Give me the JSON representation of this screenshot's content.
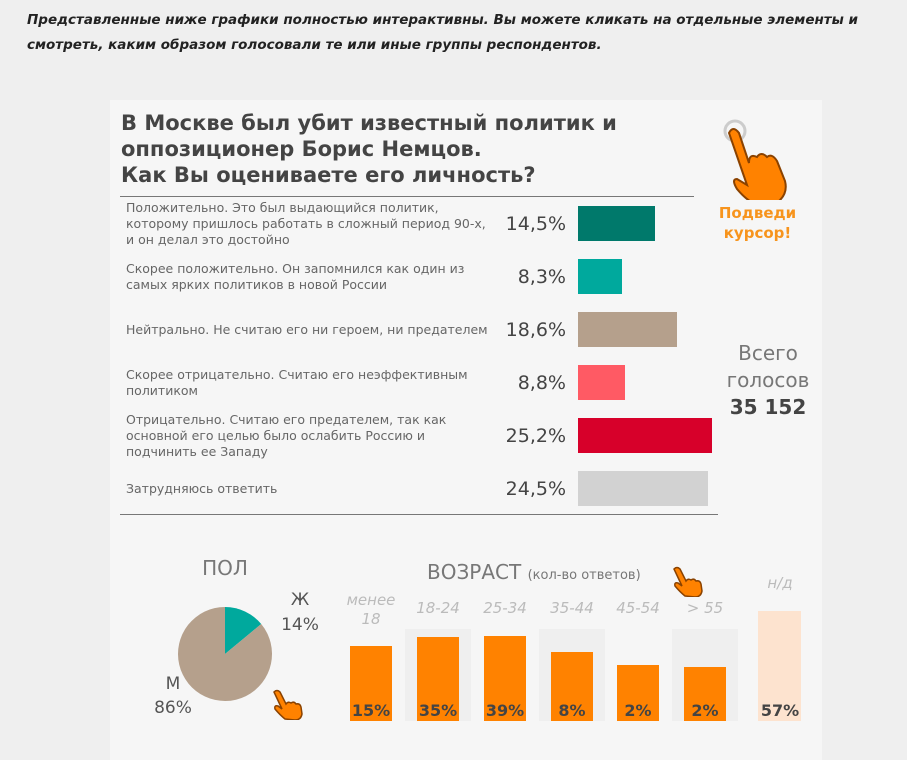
{
  "intro": "Представленные ниже графики полностью интерактивны. Вы можете кликать на отдельные элементы и смотреть, каким образом голосовали те или иные группы респондентов.",
  "title_lines": [
    "В Москве был убит известный политик и",
    "оппозиционер Борис Немцов.",
    "Как Вы оцениваете его личность?"
  ],
  "cta": [
    "Подведи",
    "курсор!"
  ],
  "total": {
    "line1": "Всего",
    "line2": "голосов",
    "value": "35 152"
  },
  "chart_data": [
    {
      "type": "bar",
      "orientation": "horizontal",
      "categories": [
        "Положительно. Это был выдающийся политик, которому пришлось работать в сложный период 90-х, и он делал это достойно",
        "Скорее положительно. Он запомнился как один из самых ярких политиков в новой России",
        "Нейтрально. Не считаю его ни героем, ни предателем",
        "Скорее отрицательно. Считаю его неэффективным политиком",
        "Отрицательно. Считаю его предателем, так как основной его целью было ослабить Россию и подчинить ее Западу",
        "Затрудняюсь ответить"
      ],
      "values": [
        14.5,
        8.3,
        18.6,
        8.8,
        25.2,
        24.5
      ],
      "labels": [
        "14,5%",
        "8,3%",
        "18,6%",
        "8,8%",
        "25,2%",
        "24,5%"
      ],
      "colors": [
        "#00796b",
        "#00a99d",
        "#b5a08c",
        "#ff5a64",
        "#d7002a",
        "#d2d2d2"
      ]
    },
    {
      "type": "pie",
      "title": "ПОЛ",
      "slices": [
        {
          "name": "Ж",
          "value": 14,
          "label": "14%",
          "color": "#00a99d"
        },
        {
          "name": "М",
          "value": 86,
          "label": "86%",
          "color": "#b5a08c"
        }
      ]
    },
    {
      "type": "bar",
      "title": "ВОЗРАСТ",
      "subtitle": "(кол-во ответов)",
      "categories": [
        "менее 18",
        "18-24",
        "25-34",
        "35-44",
        "45-54",
        "> 55",
        "н/д"
      ],
      "labels": [
        "15%",
        "35%",
        "39%",
        "8%",
        "2%",
        "2%",
        "57%"
      ],
      "values": [
        15,
        35,
        39,
        8,
        2,
        2,
        57
      ],
      "colors": {
        "bar": "#ff8200",
        "nd": "#fde3cf"
      }
    }
  ]
}
